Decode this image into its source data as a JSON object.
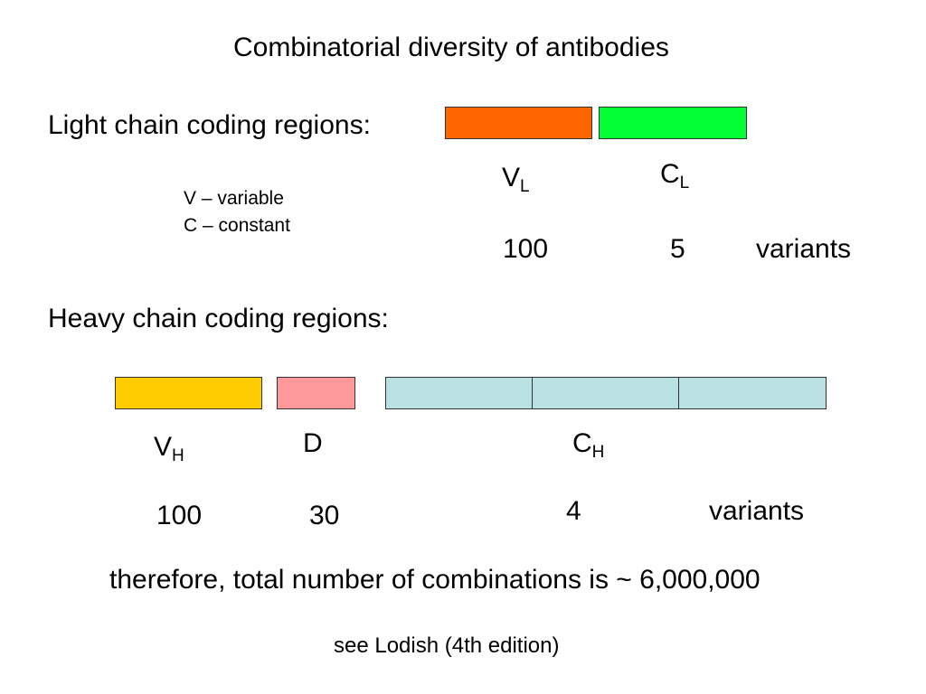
{
  "title": "Combinatorial diversity of antibodies",
  "legend": {
    "v_line": "V – variable",
    "c_line": "C – constant"
  },
  "light_chain": {
    "heading": "Light chain coding regions:",
    "segments": [
      {
        "main": "V",
        "sub": "L",
        "count": "100",
        "color": "#FF6600"
      },
      {
        "main": "C",
        "sub": "L",
        "count": "5",
        "color": "#00FF33"
      }
    ],
    "variants_label": "variants"
  },
  "heavy_chain": {
    "heading": "Heavy chain coding regions:",
    "segments": [
      {
        "main": "V",
        "sub": "H",
        "count": "100",
        "color": "#FFCC00"
      },
      {
        "main": "D",
        "sub": "",
        "count": "30",
        "color": "#FF9999"
      },
      {
        "main": "C",
        "sub": "H",
        "count": "4",
        "color": "#B9E0E3"
      }
    ],
    "variants_label": "variants"
  },
  "summary": "therefore, total number of combinations is ~ 6,000,000",
  "footnote": "see Lodish (4th edition)"
}
